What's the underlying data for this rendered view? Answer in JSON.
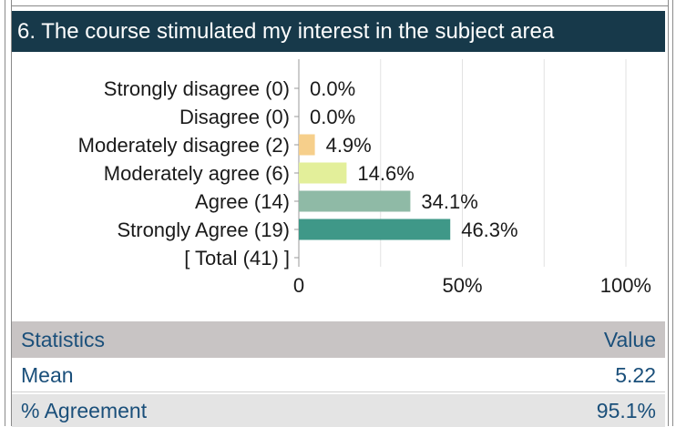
{
  "question_title": "6. The course stimulated my interest in the subject area",
  "chart_data": {
    "type": "bar",
    "orientation": "horizontal",
    "categories": [
      "Strongly disagree (0)",
      "Disagree (0)",
      "Moderately disagree (2)",
      "Moderately agree (6)",
      "Agree (14)",
      "Strongly Agree (19)"
    ],
    "values": [
      0.0,
      0.0,
      4.9,
      14.6,
      34.1,
      46.3
    ],
    "value_labels": [
      "0.0%",
      "0.0%",
      "4.9%",
      "14.6%",
      "34.1%",
      "46.3%"
    ],
    "colors": [
      "#f6cf8b",
      "#f6cf8b",
      "#f6cf8b",
      "#e3ef9a",
      "#8fbaa6",
      "#3f9888"
    ],
    "total_label": "[ Total (41) ]",
    "x_ticks": [
      "0",
      "50%",
      "100%"
    ],
    "xlim": [
      0,
      100
    ],
    "grid": true
  },
  "stats": {
    "header": {
      "label": "Statistics",
      "value": "Value"
    },
    "rows": [
      {
        "label": "Mean",
        "value": "5.22"
      },
      {
        "label": "% Agreement",
        "value": "95.1%"
      }
    ]
  },
  "colors": {
    "header_bg": "#17394a",
    "stats_header_bg": "#c8c4c4",
    "stats_text": "#1a4f7a"
  }
}
